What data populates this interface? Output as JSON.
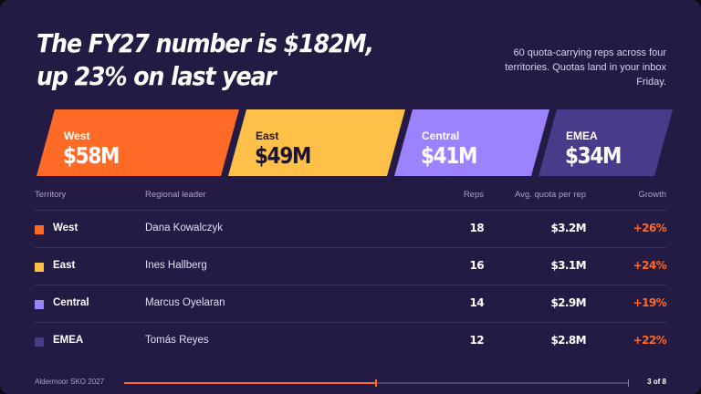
{
  "headline": {
    "line1": "The FY27 number is $182M,",
    "line2": "up 23% on last year"
  },
  "subhead": "60 quota-carrying reps across four territories. Quotas land in your inbox Friday.",
  "bands": [
    {
      "name": "West",
      "value": "$58M",
      "color": "#ff6a26"
    },
    {
      "name": "East",
      "value": "$49M",
      "color": "#ffc04a"
    },
    {
      "name": "Central",
      "value": "$41M",
      "color": "#9d82ff"
    },
    {
      "name": "EMEA",
      "value": "$34M",
      "color": "#4a3a8a"
    }
  ],
  "table": {
    "headers": {
      "territory": "Territory",
      "leader": "Regional leader",
      "reps": "Reps",
      "quota": "Avg. quota per rep",
      "growth": "Growth"
    },
    "rows": [
      {
        "territory": "West",
        "leader": "Dana Kowalczyk",
        "reps": "18",
        "quota": "$3.2M",
        "growth": "+26%",
        "color": "#ff6a26"
      },
      {
        "territory": "East",
        "leader": "Ines Hallberg",
        "reps": "16",
        "quota": "$3.1M",
        "growth": "+24%",
        "color": "#ffc04a"
      },
      {
        "territory": "Central",
        "leader": "Marcus Oyelaran",
        "reps": "14",
        "quota": "$2.9M",
        "growth": "+19%",
        "color": "#9d82ff"
      },
      {
        "territory": "EMEA",
        "leader": "Tomás Reyes",
        "reps": "12",
        "quota": "$2.8M",
        "growth": "+22%",
        "color": "#4a3a8a"
      }
    ]
  },
  "footer": {
    "brand": "Aldermoor SKO 2027",
    "page": "3 of 8",
    "progress": 0.5
  }
}
